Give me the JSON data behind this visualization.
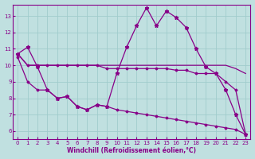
{
  "xlabel": "Windchill (Refroidissement éolien,°C)",
  "bg_color": "#c0e0e0",
  "line_color": "#880088",
  "grid_color": "#a0cccc",
  "xlim": [
    -0.5,
    23.5
  ],
  "ylim": [
    5.5,
    13.7
  ],
  "xticks": [
    0,
    1,
    2,
    3,
    4,
    5,
    6,
    7,
    8,
    9,
    10,
    11,
    12,
    13,
    14,
    15,
    16,
    17,
    18,
    19,
    20,
    21,
    22,
    23
  ],
  "yticks": [
    6,
    7,
    8,
    9,
    10,
    11,
    12,
    13
  ],
  "line1_x": [
    0,
    1,
    2,
    3,
    4,
    5,
    6,
    7,
    8,
    9,
    10,
    11,
    12,
    13,
    14,
    15,
    16,
    17,
    18,
    19,
    20,
    21,
    22,
    23
  ],
  "line1_y": [
    10.7,
    11.1,
    9.9,
    8.5,
    8.0,
    8.1,
    7.5,
    7.3,
    7.6,
    7.5,
    9.5,
    11.1,
    12.4,
    13.5,
    12.4,
    13.3,
    12.9,
    12.3,
    11.0,
    9.9,
    9.5,
    8.5,
    7.0,
    5.8
  ],
  "line2_x": [
    0,
    1,
    2,
    3,
    4,
    5,
    6,
    7,
    8,
    9,
    10,
    11,
    12,
    13,
    14,
    15,
    16,
    17,
    18,
    19,
    20,
    21,
    22,
    23
  ],
  "line2_y": [
    10.7,
    10.0,
    10.0,
    10.0,
    10.0,
    10.0,
    10.0,
    10.0,
    10.0,
    10.0,
    10.0,
    10.0,
    10.0,
    10.0,
    10.0,
    10.0,
    10.0,
    10.0,
    10.0,
    10.0,
    10.0,
    10.0,
    9.8,
    9.5
  ],
  "line3_x": [
    0,
    1,
    2,
    3,
    4,
    5,
    6,
    7,
    8,
    9,
    10,
    11,
    12,
    13,
    14,
    15,
    16,
    17,
    18,
    19,
    20,
    21,
    22,
    23
  ],
  "line3_y": [
    10.7,
    10.0,
    10.0,
    10.0,
    10.0,
    10.0,
    10.0,
    10.0,
    10.0,
    9.8,
    9.8,
    9.8,
    9.8,
    9.8,
    9.8,
    9.8,
    9.7,
    9.7,
    9.5,
    9.5,
    9.5,
    9.0,
    8.5,
    5.8
  ],
  "line4_x": [
    0,
    1,
    2,
    3,
    4,
    5,
    6,
    7,
    8,
    9,
    10,
    11,
    12,
    13,
    14,
    15,
    16,
    17,
    18,
    19,
    20,
    21,
    22,
    23
  ],
  "line4_y": [
    10.5,
    9.0,
    8.5,
    8.5,
    8.0,
    8.1,
    7.5,
    7.3,
    7.6,
    7.5,
    7.3,
    7.2,
    7.1,
    7.0,
    6.9,
    6.8,
    6.7,
    6.6,
    6.5,
    6.4,
    6.3,
    6.2,
    6.1,
    5.8
  ]
}
